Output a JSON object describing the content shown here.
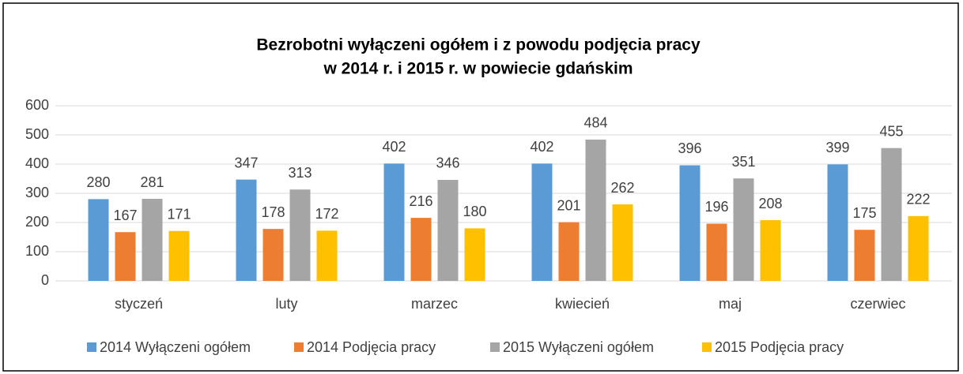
{
  "chart_data": {
    "type": "bar",
    "title": [
      "Bezrobotni wyłączeni ogółem i z powodu podjęcia pracy",
      "w 2014 r. i 2015 r. w powiecie gdańskim"
    ],
    "categories": [
      "styczeń",
      "luty",
      "marzec",
      "kwiecień",
      "maj",
      "czerwiec"
    ],
    "series": [
      {
        "name": "2014 Wyłączeni ogółem",
        "color": "#5b9bd5",
        "values": [
          280,
          347,
          402,
          402,
          396,
          399
        ]
      },
      {
        "name": "2014 Podjęcia pracy",
        "color": "#ed7d31",
        "values": [
          167,
          178,
          216,
          201,
          196,
          175
        ]
      },
      {
        "name": "2015 Wyłączeni ogółem",
        "color": "#a5a5a5",
        "values": [
          281,
          313,
          346,
          484,
          351,
          455
        ]
      },
      {
        "name": "2015 Podjęcia pracy",
        "color": "#ffc000",
        "values": [
          171,
          172,
          180,
          262,
          208,
          222
        ]
      }
    ],
    "ylim": [
      0,
      600
    ],
    "yticks": [
      0,
      100,
      200,
      300,
      400,
      500,
      600
    ],
    "grid": true,
    "legend": "bottom"
  }
}
